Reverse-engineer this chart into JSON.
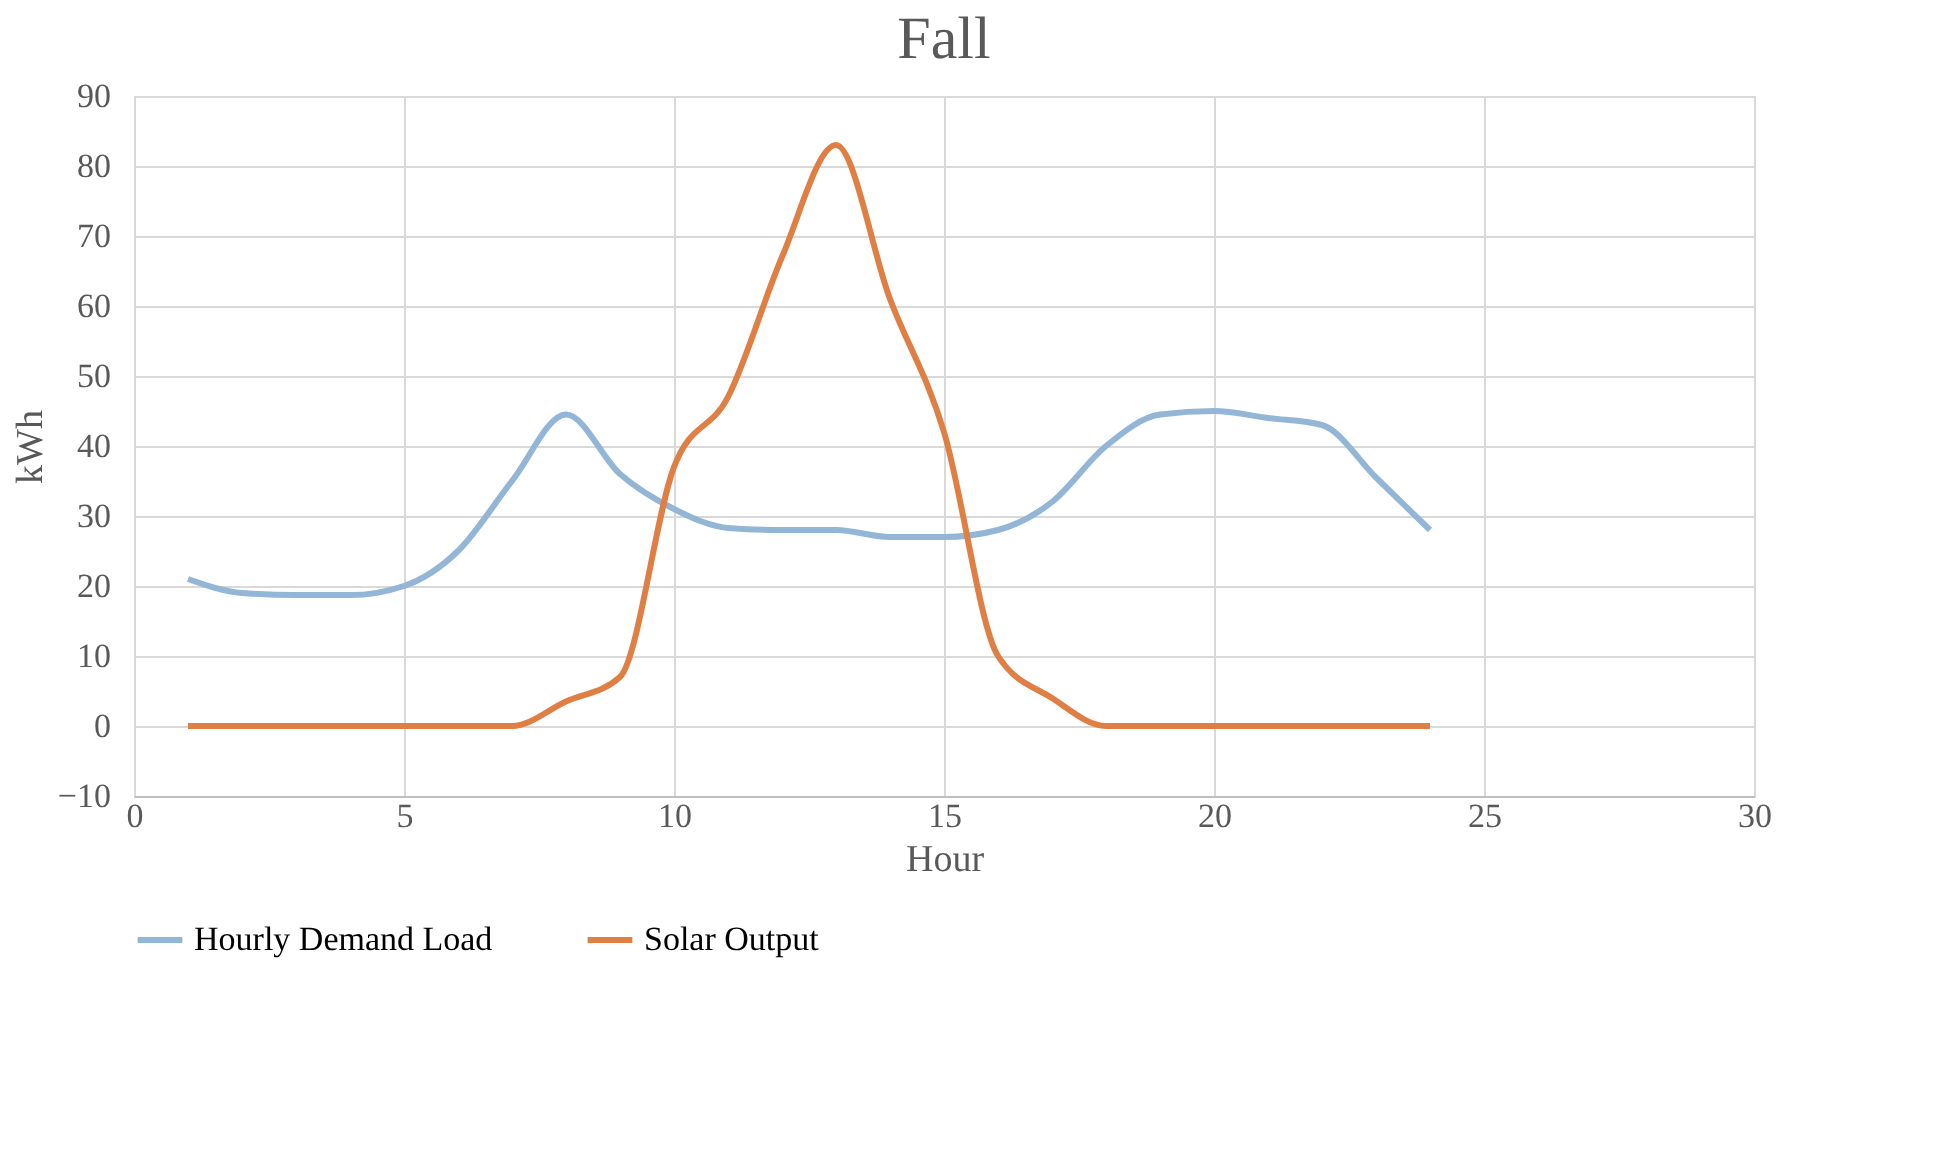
{
  "chart_data": {
    "type": "line",
    "title": "Fall",
    "xlabel": "Hour",
    "ylabel": "kWh",
    "x": [
      1,
      2,
      3,
      4,
      5,
      6,
      7,
      8,
      9,
      10,
      11,
      12,
      13,
      14,
      15,
      16,
      17,
      18,
      19,
      20,
      21,
      22,
      23,
      24
    ],
    "series": [
      {
        "name": "Hourly Demand Load",
        "color": "#93b6d6",
        "values": [
          21,
          19,
          18.7,
          18.7,
          20,
          25,
          35,
          44.5,
          36,
          31,
          28.3,
          28,
          28,
          27,
          27,
          28,
          32,
          40,
          44.5,
          45,
          44,
          43,
          35.5,
          28
        ]
      },
      {
        "name": "Solar Output",
        "color": "#e07f44",
        "values": [
          0,
          0,
          0,
          0,
          0,
          0,
          0,
          3.5,
          7,
          37,
          47,
          67,
          83,
          61,
          42,
          10,
          4,
          0,
          0,
          0,
          0,
          0,
          0,
          0
        ]
      }
    ],
    "xlim": [
      0,
      30
    ],
    "xticks": [
      0,
      5,
      10,
      15,
      20,
      25,
      30
    ],
    "ylim": [
      -10,
      90
    ],
    "yticks": [
      -10,
      0,
      10,
      20,
      30,
      40,
      50,
      60,
      70,
      80,
      90
    ],
    "grid": true,
    "legend": "bottom",
    "marker": "none",
    "line_style": "solid"
  }
}
